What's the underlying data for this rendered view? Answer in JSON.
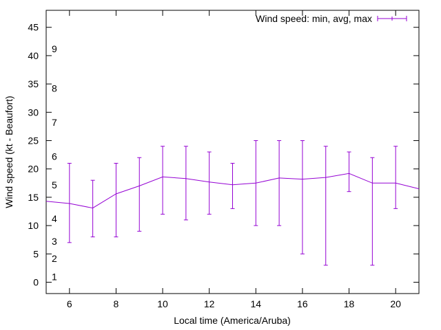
{
  "chart_data": {
    "type": "line",
    "title": "",
    "xlabel": "Local time (America/Aruba)",
    "ylabel": "Wind speed (kt - Beaufort)",
    "xlim": [
      5,
      21
    ],
    "ylim": [
      -2,
      48
    ],
    "x_ticks": [
      6,
      8,
      10,
      12,
      14,
      16,
      18,
      20
    ],
    "y_ticks": [
      0,
      5,
      10,
      15,
      20,
      25,
      30,
      35,
      40,
      45
    ],
    "grid": false,
    "legend_position": "top-right",
    "beaufort_labels": [
      {
        "label": "1",
        "kt": 1
      },
      {
        "label": "2",
        "kt": 4.2
      },
      {
        "label": "3",
        "kt": 7.2
      },
      {
        "label": "4",
        "kt": 11.2
      },
      {
        "label": "5",
        "kt": 17.2
      },
      {
        "label": "6",
        "kt": 22.2
      },
      {
        "label": "7",
        "kt": 28.2
      },
      {
        "label": "8",
        "kt": 34.2
      },
      {
        "label": "9",
        "kt": 41.2
      }
    ],
    "series": [
      {
        "name": "Wind speed: min, avg, max",
        "color": "#9400d3",
        "x": [
          5,
          6,
          7,
          8,
          9,
          10,
          11,
          12,
          13,
          14,
          15,
          16,
          17,
          18,
          19,
          20,
          21
        ],
        "avg": [
          14.3,
          13.9,
          13.1,
          15.6,
          17.0,
          18.6,
          18.3,
          17.7,
          17.2,
          17.5,
          18.4,
          18.2,
          18.5,
          19.2,
          17.5,
          17.5,
          16.5
        ],
        "min": [
          null,
          7,
          8,
          8,
          9,
          12,
          11,
          12,
          13,
          10,
          10,
          5,
          3,
          16,
          3,
          13,
          null
        ],
        "max": [
          null,
          21,
          18,
          21,
          22,
          24,
          24,
          23,
          21,
          25,
          25,
          25,
          24,
          23,
          22,
          24,
          null
        ]
      }
    ]
  }
}
